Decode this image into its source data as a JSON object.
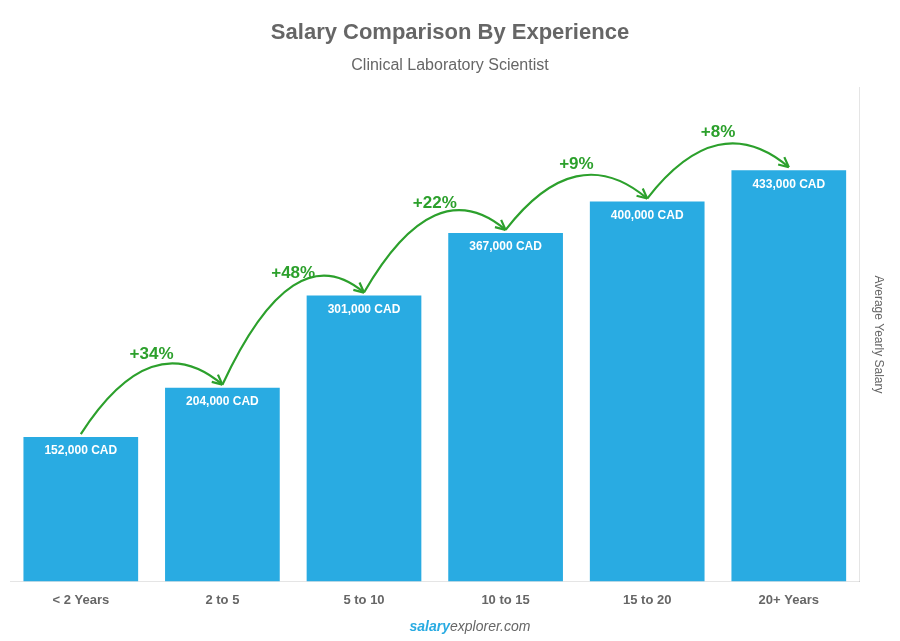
{
  "chart_data": {
    "type": "bar",
    "title": "Salary Comparison By Experience",
    "subtitle": "Clinical Laboratory Scientist",
    "y_label": "Average Yearly Salary",
    "categories": [
      "< 2 Years",
      "2 to 5",
      "5 to 10",
      "10 to 15",
      "15 to 20",
      "20+ Years"
    ],
    "values": [
      152000,
      204000,
      301000,
      367000,
      400000,
      433000
    ],
    "value_labels": [
      "152,000 CAD",
      "204,000 CAD",
      "301,000 CAD",
      "367,000 CAD",
      "400,000 CAD",
      "433,000 CAD"
    ],
    "data_labels": true,
    "color": "#29ABE2",
    "ylim": [
      0,
      520000
    ],
    "tick_labels": "x",
    "grid": false,
    "legend": false,
    "annotations": [
      {
        "text": "+34%",
        "from": "< 2 Years",
        "to": "2 to 5",
        "color": "#2ca02c"
      },
      {
        "text": "+48%",
        "from": "2 to 5",
        "to": "5 to 10",
        "color": "#2ca02c"
      },
      {
        "text": "+22%",
        "from": "5 to 10",
        "to": "10 to 15",
        "color": "#2ca02c"
      },
      {
        "text": "+9%",
        "from": "10 to 15",
        "to": "15 to 20",
        "color": "#2ca02c"
      },
      {
        "text": "+8%",
        "from": "15 to 20",
        "to": "20+ Years",
        "color": "#2ca02c"
      }
    ],
    "watermark": [
      "salary",
      "explorer.com"
    ]
  }
}
